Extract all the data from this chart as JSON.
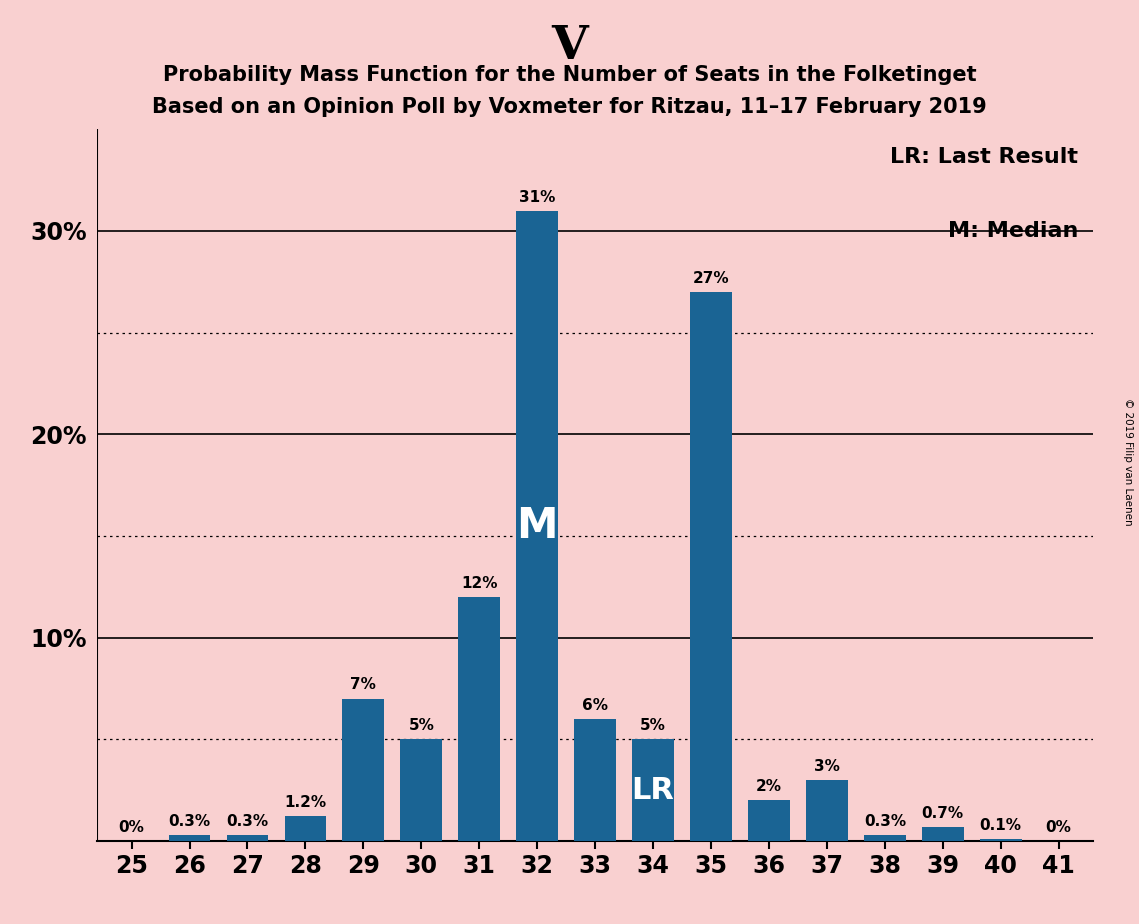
{
  "title_main": "V",
  "title_line1": "Probability Mass Function for the Number of Seats in the Folketinget",
  "title_line2": "Based on an Opinion Poll by Voxmeter for Ritzau, 11–17 February 2019",
  "copyright_text": "© 2019 Filip van Laenen",
  "categories": [
    25,
    26,
    27,
    28,
    29,
    30,
    31,
    32,
    33,
    34,
    35,
    36,
    37,
    38,
    39,
    40,
    41
  ],
  "values": [
    0.0,
    0.3,
    0.3,
    1.2,
    7.0,
    5.0,
    12.0,
    31.0,
    6.0,
    5.0,
    27.0,
    2.0,
    3.0,
    0.3,
    0.7,
    0.1,
    0.0
  ],
  "labels": [
    "0%",
    "0.3%",
    "0.3%",
    "1.2%",
    "7%",
    "5%",
    "12%",
    "31%",
    "6%",
    "5%",
    "27%",
    "2%",
    "3%",
    "0.3%",
    "0.7%",
    "0.1%",
    "0%"
  ],
  "bar_color": "#1a6494",
  "background_color": "#f9d0d0",
  "median_bar": 32,
  "lr_bar": 34,
  "legend_lr": "LR: Last Result",
  "legend_m": "M: Median",
  "ylim": [
    0,
    35
  ],
  "yticks": [
    10,
    20,
    30
  ],
  "ytick_labels": [
    "10%",
    "20%",
    "30%"
  ],
  "solid_grid": [
    10,
    20,
    30
  ],
  "dotted_grid": [
    5,
    15,
    25
  ]
}
